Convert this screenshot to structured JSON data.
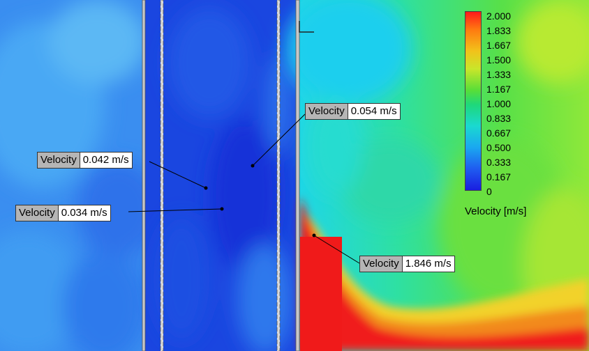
{
  "probes": [
    {
      "id": "p1",
      "key": "Velocity",
      "value": "0.054 m/s"
    },
    {
      "id": "p2",
      "key": "Velocity",
      "value": "0.042 m/s"
    },
    {
      "id": "p3",
      "key": "Velocity",
      "value": "0.034 m/s"
    },
    {
      "id": "p4",
      "key": "Velocity",
      "value": "1.846 m/s"
    }
  ],
  "legend": {
    "title": "Velocity [m/s]",
    "ticks": [
      "2.000",
      "1.833",
      "1.667",
      "1.500",
      "1.333",
      "1.167",
      "1.000",
      "0.833",
      "0.667",
      "0.500",
      "0.333",
      "0.167",
      "0"
    ]
  }
}
